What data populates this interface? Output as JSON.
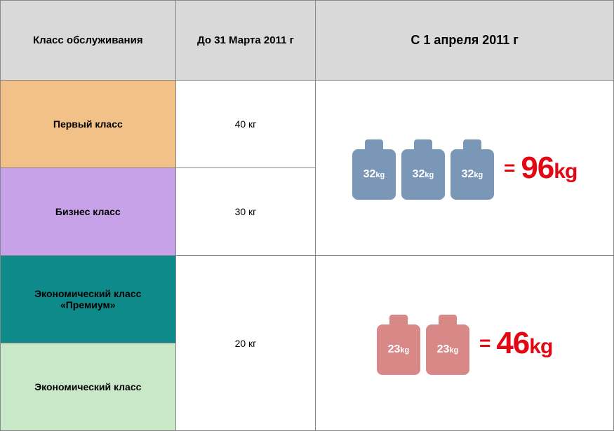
{
  "headers": {
    "col1": "Класс обслуживания",
    "col2": "До 31 Марта 2011 г",
    "col3": "С 1 апреля 2011 г"
  },
  "rows": [
    {
      "name": "Первый класс",
      "bg_color": "#f2c188",
      "weight": "40 кг"
    },
    {
      "name": "Бизнес класс",
      "bg_color": "#c8a2e8",
      "weight": "30 кг"
    },
    {
      "name": "Экономический класс «Премиум»",
      "bg_color": "#0f8a8a",
      "weight": "20 кг"
    },
    {
      "name": "Экономический класс",
      "bg_color": "#c8e8c8",
      "weight": ""
    }
  ],
  "luggage_groups": [
    {
      "suitcase_color": "#7a97b8",
      "suitcase_class": "suitcase-blue",
      "bag_weight_num": "32",
      "bag_weight_unit": "kg",
      "bag_count": 3,
      "total_num": "96",
      "total_unit": "kg",
      "total_color": "#e30613"
    },
    {
      "suitcase_color": "#d98888",
      "suitcase_class": "suitcase-pink",
      "bag_weight_num": "23",
      "bag_weight_unit": "kg",
      "bag_count": 2,
      "total_num": "46",
      "total_unit": "kg",
      "total_color": "#e30613"
    }
  ],
  "equals_sign": "="
}
